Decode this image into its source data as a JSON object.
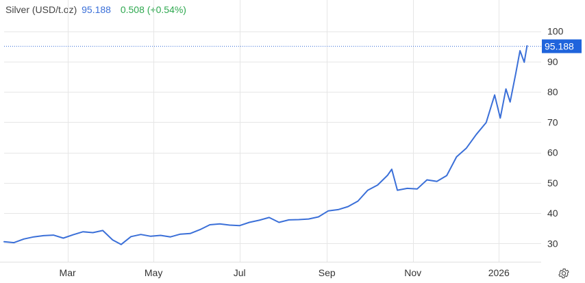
{
  "header": {
    "title": "Silver (USD/t.oz)",
    "price": "95.188",
    "change": "0.508 (+0.54%)"
  },
  "colors": {
    "line": "#3a6fd8",
    "change_positive": "#2ea84f",
    "grid": "#e6e6e6",
    "last_label_bg": "#1f64dc"
  },
  "settings_icon": "gear-icon",
  "chart_data": {
    "type": "line",
    "title": "Silver (USD/t.oz)",
    "last_value_label": "95.188",
    "ylim": [
      24,
      104
    ],
    "yticks": [
      30,
      40,
      50,
      60,
      70,
      80,
      90,
      100
    ],
    "ytick_labels": [
      "30",
      "40",
      "50",
      "60",
      "70",
      "80",
      "90",
      "100"
    ],
    "xticks": [
      "Mar",
      "May",
      "Jul",
      "Sep",
      "Nov",
      "2026"
    ],
    "grid": true,
    "x": [
      "2025-01-15",
      "2025-01-22",
      "2025-01-29",
      "2025-02-05",
      "2025-02-12",
      "2025-02-19",
      "2025-02-26",
      "2025-03-05",
      "2025-03-12",
      "2025-03-19",
      "2025-03-26",
      "2025-04-02",
      "2025-04-08",
      "2025-04-15",
      "2025-04-22",
      "2025-04-29",
      "2025-05-06",
      "2025-05-13",
      "2025-05-20",
      "2025-05-27",
      "2025-06-03",
      "2025-06-10",
      "2025-06-17",
      "2025-06-24",
      "2025-07-01",
      "2025-07-08",
      "2025-07-15",
      "2025-07-22",
      "2025-07-29",
      "2025-08-05",
      "2025-08-12",
      "2025-08-19",
      "2025-08-26",
      "2025-09-02",
      "2025-09-09",
      "2025-09-16",
      "2025-09-23",
      "2025-09-30",
      "2025-10-07",
      "2025-10-14",
      "2025-10-17",
      "2025-10-21",
      "2025-10-28",
      "2025-11-04",
      "2025-11-11",
      "2025-11-18",
      "2025-11-25",
      "2025-12-02",
      "2025-12-09",
      "2025-12-16",
      "2025-12-23",
      "2025-12-29",
      "2026-01-02",
      "2026-01-06",
      "2026-01-09",
      "2026-01-13",
      "2026-01-16",
      "2026-01-19",
      "2026-01-21"
    ],
    "series": [
      {
        "values": [
          30.6,
          30.3,
          31.5,
          32.2,
          32.6,
          32.8,
          31.8,
          32.9,
          33.9,
          33.6,
          34.3,
          31.2,
          29.7,
          32.3,
          33.0,
          32.4,
          32.7,
          32.2,
          33.1,
          33.3,
          34.6,
          36.2,
          36.5,
          36.1,
          35.9,
          37.0,
          37.7,
          38.6,
          37.0,
          37.8,
          37.9,
          38.1,
          38.8,
          40.8,
          41.2,
          42.2,
          44.0,
          47.6,
          49.3,
          52.5,
          54.5,
          47.6,
          48.2,
          48.0,
          51.0,
          50.5,
          52.4,
          58.6,
          61.5,
          66.0,
          69.9,
          79.0,
          71.4,
          81.0,
          76.7,
          86.2,
          93.6,
          89.8,
          95.2
        ]
      }
    ]
  },
  "layout_note": ""
}
